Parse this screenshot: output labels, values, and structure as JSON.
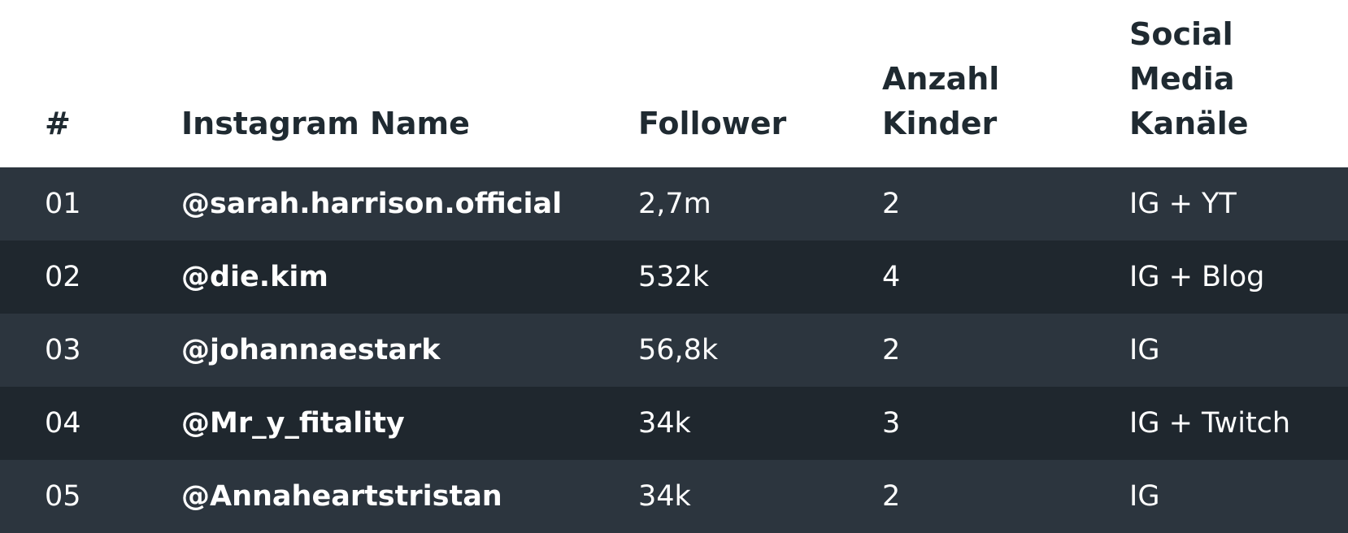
{
  "columns": [
    "#",
    "Instagram Name",
    "Follower",
    "Anzahl\nKinder",
    "Social\nMedia\nKanäle"
  ],
  "rows": [
    {
      "num": "01",
      "name": "@sarah.harrison.official",
      "follower": "2,7m",
      "kinder": "2",
      "kanaele": "IG + YT"
    },
    {
      "num": "02",
      "name": "@die.kim",
      "follower": "532k",
      "kinder": "4",
      "kanaele": "IG + Blog"
    },
    {
      "num": "03",
      "name": "@johannaestark",
      "follower": "56,8k",
      "kinder": "2",
      "kanaele": "IG"
    },
    {
      "num": "04",
      "name": "@Mr_y_fitality",
      "follower": "34k",
      "kinder": "3",
      "kanaele": "IG + Twitch"
    },
    {
      "num": "05",
      "name": "@Annaheartstristan",
      "follower": "34k",
      "kinder": "2",
      "kanaele": "IG"
    }
  ]
}
